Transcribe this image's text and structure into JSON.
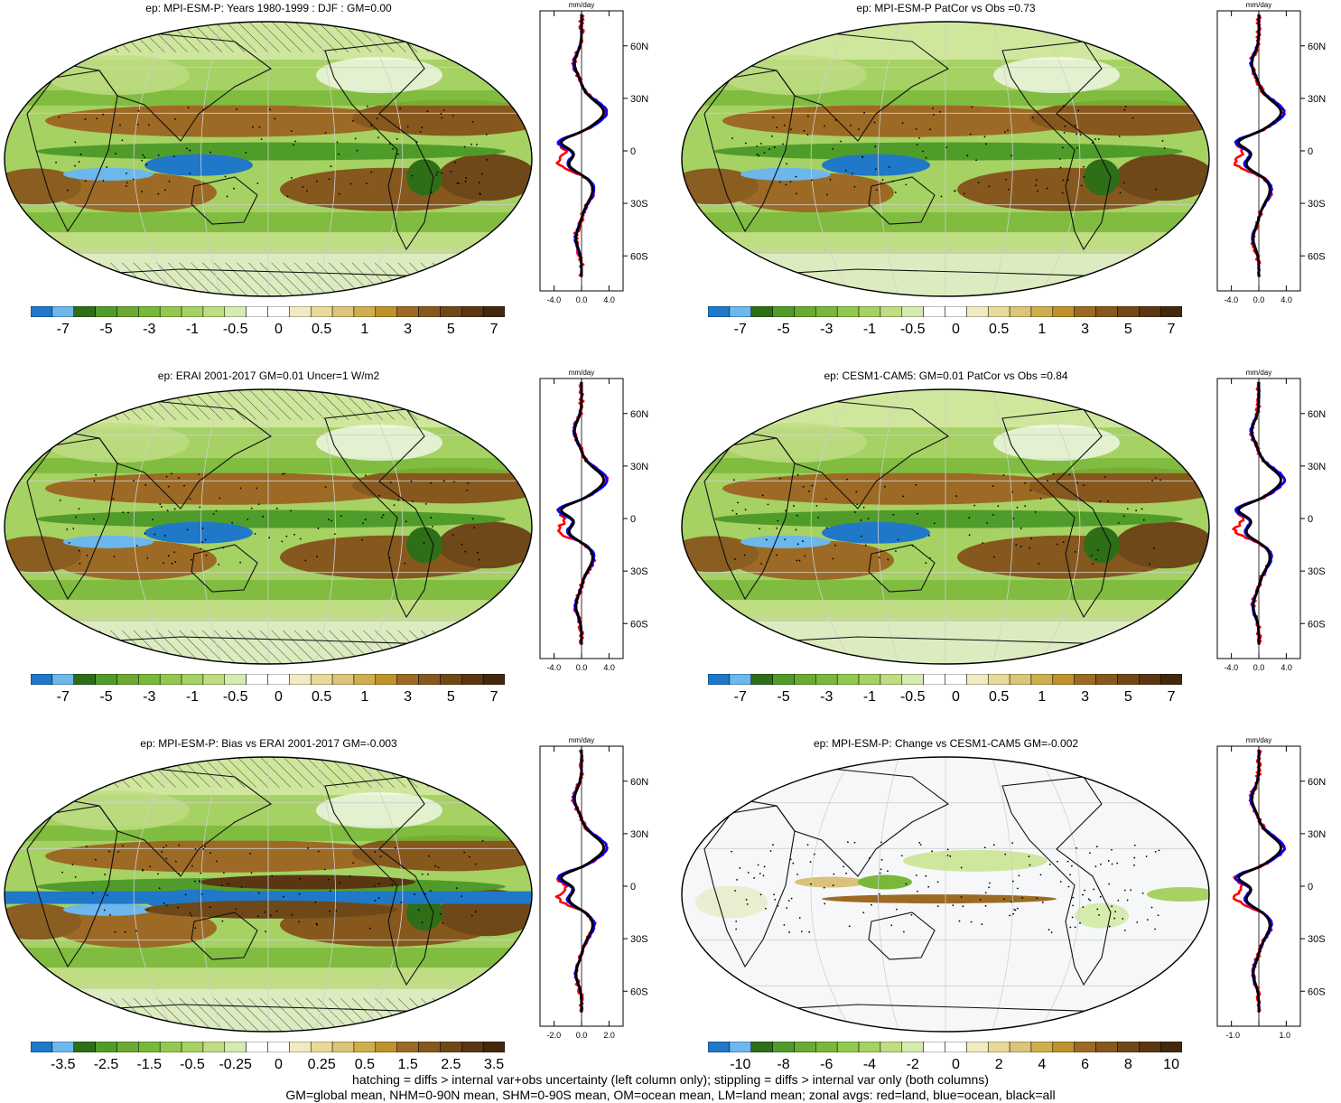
{
  "colors": {
    "strong_blue": "#1f78c8",
    "light_blue": "#6cb7ec",
    "dark_green": "#2e6e17",
    "mid_green": "#4f9c2b",
    "green": "#79b83a",
    "light_green": "#a6d163",
    "pale_green": "#cfe79d",
    "white": "#f7f9fa",
    "pale_tan": "#efe6b8",
    "tan": "#d9c27a",
    "gold": "#c59a3b",
    "brown": "#9c6a24",
    "dark_brown": "#5e3a12",
    "ocean_background": "#a6d163",
    "coast": "#111111",
    "land_line": "#ff0000",
    "ocean_line": "#0000ff",
    "all_line": "#000000"
  },
  "panels": [
    {
      "id": "top-left",
      "title": "ep: MPI-ESM-P: Years 1980-1999 : DJF : GM=0.00",
      "colorbar_labels": [
        "-7",
        "-5",
        "-3",
        "-1",
        "-0.5",
        "0",
        "0.5",
        "1",
        "3",
        "5",
        "7"
      ],
      "colorbar_palette": "main",
      "profile_unit": "mm/day",
      "profile_x_ticks": [
        "-4.0",
        "0.0",
        "4.0"
      ],
      "profile_x_range": [
        -6,
        6
      ],
      "map_pattern": "climatology",
      "hatching": true
    },
    {
      "id": "top-right",
      "title": "ep: MPI-ESM-P PatCor vs Obs =0.73",
      "colorbar_labels": [
        "-7",
        "-5",
        "-3",
        "-1",
        "-0.5",
        "0",
        "0.5",
        "1",
        "3",
        "5",
        "7"
      ],
      "colorbar_palette": "main",
      "profile_unit": "mm/day",
      "profile_x_ticks": [
        "-4.0",
        "0.0",
        "4.0"
      ],
      "profile_x_range": [
        -6,
        6
      ],
      "map_pattern": "climatology",
      "hatching": false
    },
    {
      "id": "mid-left",
      "title": "ep: ERAI 2001-2017 GM=0.01 Uncer=1 W/m2",
      "colorbar_labels": [
        "-7",
        "-5",
        "-3",
        "-1",
        "-0.5",
        "0",
        "0.5",
        "1",
        "3",
        "5",
        "7"
      ],
      "colorbar_palette": "main",
      "profile_unit": "mm/day",
      "profile_x_ticks": [
        "-4.0",
        "0.0",
        "4.0"
      ],
      "profile_x_range": [
        -6,
        6
      ],
      "map_pattern": "climatology",
      "hatching": true
    },
    {
      "id": "mid-right",
      "title": "ep: CESM1-CAM5: GM=0.01 PatCor vs Obs =0.84",
      "colorbar_labels": [
        "-7",
        "-5",
        "-3",
        "-1",
        "-0.5",
        "0",
        "0.5",
        "1",
        "3",
        "5",
        "7"
      ],
      "colorbar_palette": "main",
      "profile_unit": "mm/day",
      "profile_x_ticks": [
        "-4.0",
        "0.0",
        "4.0"
      ],
      "profile_x_range": [
        -6,
        6
      ],
      "map_pattern": "climatology",
      "hatching": false
    },
    {
      "id": "bottom-left",
      "title": "ep: MPI-ESM-P: Bias vs ERAI 2001-2017 GM=-0.003",
      "colorbar_labels": [
        "-3.5",
        "-2.5",
        "-1.5",
        "-0.5",
        "-0.25",
        "0",
        "0.25",
        "0.5",
        "1.5",
        "2.5",
        "3.5"
      ],
      "colorbar_palette": "main",
      "profile_unit": "mm/day",
      "profile_x_ticks": [
        "-2.0",
        "0.0",
        "2.0"
      ],
      "profile_x_range": [
        -3,
        3
      ],
      "map_pattern": "bias",
      "hatching": true
    },
    {
      "id": "bottom-right",
      "title": "ep: MPI-ESM-P: Change vs CESM1-CAM5 GM=-0.002",
      "colorbar_labels": [
        "-10",
        "-8",
        "-6",
        "-4",
        "-2",
        "0",
        "2",
        "4",
        "6",
        "8",
        "10"
      ],
      "colorbar_palette": "main",
      "profile_unit": "mm/day",
      "profile_x_ticks": [
        "-1.0",
        "1.0"
      ],
      "profile_x_range": [
        -1.6,
        1.6
      ],
      "map_pattern": "change",
      "hatching": false
    }
  ],
  "profile_lat_labels": [
    "60N",
    "30N",
    "0",
    "30S",
    "60S"
  ],
  "footer": {
    "line1": "hatching = diffs > internal var+obs uncertainty (left column only); stippling = diffs > internal var only (both columns)",
    "line2": "GM=global mean, NHM=0-90N mean, SHM=0-90S mean, OM=ocean mean, LM=land mean; zonal avgs: red=land, blue=ocean, black=all"
  }
}
